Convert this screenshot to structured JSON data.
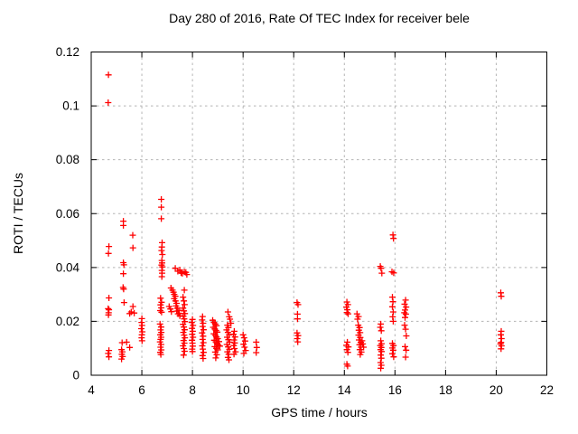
{
  "chart_data": {
    "type": "scatter",
    "title": "Day 280 of 2016, Rate Of TEC Index for receiver bele",
    "xlabel": "GPS time / hours",
    "ylabel": "ROTI / TECUs",
    "xlim": [
      4,
      22
    ],
    "ylim": [
      0,
      0.12
    ],
    "x_ticks": [
      4,
      6,
      8,
      10,
      12,
      14,
      16,
      18,
      20,
      22
    ],
    "y_ticks": [
      0,
      0.02,
      0.04,
      0.06,
      0.08,
      0.1,
      0.12
    ],
    "y_tick_labels": [
      "0",
      "0.02",
      "0.04",
      "0.06",
      "0.08",
      "0.1",
      "0.12"
    ],
    "grid": true,
    "legend": false,
    "marker": "plus",
    "marker_color": "#ff0000",
    "grid_color": "#b4b4b4",
    "axis_color": "#000000",
    "series": [
      {
        "name": "ROTI",
        "points": [
          [
            4.68,
            0.1115
          ],
          [
            4.67,
            0.1012
          ],
          [
            4.7,
            0.0478
          ],
          [
            4.68,
            0.0452
          ],
          [
            4.7,
            0.0287
          ],
          [
            4.67,
            0.0247
          ],
          [
            4.7,
            0.0243
          ],
          [
            4.69,
            0.0232
          ],
          [
            4.68,
            0.0224
          ],
          [
            4.7,
            0.0092
          ],
          [
            4.67,
            0.0081
          ],
          [
            4.7,
            0.0068
          ],
          [
            5.27,
            0.0572
          ],
          [
            5.27,
            0.0556
          ],
          [
            5.27,
            0.0418
          ],
          [
            5.29,
            0.041
          ],
          [
            5.27,
            0.0377
          ],
          [
            5.26,
            0.0326
          ],
          [
            5.28,
            0.032
          ],
          [
            5.3,
            0.027
          ],
          [
            5.22,
            0.0121
          ],
          [
            5.2,
            0.0095
          ],
          [
            5.23,
            0.0087
          ],
          [
            5.21,
            0.0078
          ],
          [
            5.24,
            0.0069
          ],
          [
            5.2,
            0.006
          ],
          [
            5.4,
            0.0123
          ],
          [
            5.52,
            0.0229
          ],
          [
            5.58,
            0.0235
          ],
          [
            5.52,
            0.0103
          ],
          [
            5.64,
            0.052
          ],
          [
            5.65,
            0.0473
          ],
          [
            5.65,
            0.0255
          ],
          [
            5.7,
            0.0231
          ],
          [
            6.0,
            0.021
          ],
          [
            5.99,
            0.0196
          ],
          [
            6.01,
            0.0185
          ],
          [
            5.98,
            0.0173
          ],
          [
            6.02,
            0.0161
          ],
          [
            6.0,
            0.015
          ],
          [
            5.99,
            0.0139
          ],
          [
            6.01,
            0.0128
          ],
          [
            6.77,
            0.0653
          ],
          [
            6.77,
            0.0624
          ],
          [
            6.77,
            0.0581
          ],
          [
            6.8,
            0.0492
          ],
          [
            6.79,
            0.0476
          ],
          [
            6.78,
            0.0463
          ],
          [
            6.81,
            0.0448
          ],
          [
            6.79,
            0.0426
          ],
          [
            6.8,
            0.0417
          ],
          [
            6.78,
            0.0409
          ],
          [
            6.81,
            0.0402
          ],
          [
            6.79,
            0.0389
          ],
          [
            6.8,
            0.0379
          ],
          [
            6.79,
            0.0366
          ],
          [
            6.74,
            0.0286
          ],
          [
            6.78,
            0.0271
          ],
          [
            6.74,
            0.0261
          ],
          [
            6.77,
            0.025
          ],
          [
            6.73,
            0.024
          ],
          [
            6.78,
            0.0234
          ],
          [
            6.72,
            0.019
          ],
          [
            6.76,
            0.0179
          ],
          [
            6.74,
            0.0168
          ],
          [
            6.77,
            0.0159
          ],
          [
            6.73,
            0.015
          ],
          [
            6.76,
            0.0141
          ],
          [
            6.74,
            0.0133
          ],
          [
            6.72,
            0.0124
          ],
          [
            6.76,
            0.0114
          ],
          [
            6.74,
            0.0104
          ],
          [
            6.77,
            0.0094
          ],
          [
            6.73,
            0.0085
          ],
          [
            6.75,
            0.0077
          ],
          [
            7.08,
            0.0255
          ],
          [
            7.13,
            0.0246
          ],
          [
            7.17,
            0.0236
          ],
          [
            7.15,
            0.0324
          ],
          [
            7.21,
            0.0316
          ],
          [
            7.25,
            0.0308
          ],
          [
            7.28,
            0.03
          ],
          [
            7.32,
            0.0293
          ],
          [
            7.28,
            0.0284
          ],
          [
            7.33,
            0.0276
          ],
          [
            7.37,
            0.0267
          ],
          [
            7.35,
            0.0257
          ],
          [
            7.4,
            0.0249
          ],
          [
            7.38,
            0.0238
          ],
          [
            7.43,
            0.0228
          ],
          [
            7.46,
            0.0241
          ],
          [
            7.48,
            0.023
          ],
          [
            7.5,
            0.0221
          ],
          [
            7.32,
            0.0397
          ],
          [
            7.42,
            0.0386
          ],
          [
            7.5,
            0.0391
          ],
          [
            7.55,
            0.038
          ],
          [
            7.6,
            0.0378
          ],
          [
            7.68,
            0.0384
          ],
          [
            7.74,
            0.0382
          ],
          [
            7.78,
            0.0374
          ],
          [
            7.68,
            0.0316
          ],
          [
            7.63,
            0.029
          ],
          [
            7.66,
            0.0276
          ],
          [
            7.69,
            0.0262
          ],
          [
            7.63,
            0.0249
          ],
          [
            7.66,
            0.0239
          ],
          [
            7.7,
            0.0229
          ],
          [
            7.64,
            0.0219
          ],
          [
            7.67,
            0.0209
          ],
          [
            7.7,
            0.0199
          ],
          [
            7.63,
            0.0189
          ],
          [
            7.66,
            0.0179
          ],
          [
            7.69,
            0.0169
          ],
          [
            7.64,
            0.0159
          ],
          [
            7.67,
            0.0149
          ],
          [
            7.7,
            0.0139
          ],
          [
            7.65,
            0.0129
          ],
          [
            7.68,
            0.0119
          ],
          [
            7.63,
            0.0109
          ],
          [
            7.66,
            0.0099
          ],
          [
            7.69,
            0.0089
          ],
          [
            7.65,
            0.0075
          ],
          [
            8.0,
            0.0207
          ],
          [
            7.97,
            0.0196
          ],
          [
            8.02,
            0.0185
          ],
          [
            7.98,
            0.0174
          ],
          [
            8.01,
            0.0163
          ],
          [
            7.99,
            0.0152
          ],
          [
            8.02,
            0.0141
          ],
          [
            7.98,
            0.013
          ],
          [
            8.0,
            0.0119
          ],
          [
            8.01,
            0.0108
          ],
          [
            7.99,
            0.0097
          ],
          [
            8.0,
            0.0088
          ],
          [
            8.4,
            0.0218
          ],
          [
            8.38,
            0.0205
          ],
          [
            8.42,
            0.0193
          ],
          [
            8.4,
            0.0181
          ],
          [
            8.44,
            0.0169
          ],
          [
            8.38,
            0.0157
          ],
          [
            8.42,
            0.0145
          ],
          [
            8.4,
            0.0133
          ],
          [
            8.43,
            0.0121
          ],
          [
            8.39,
            0.0109
          ],
          [
            8.41,
            0.0097
          ],
          [
            8.44,
            0.0085
          ],
          [
            8.4,
            0.0073
          ],
          [
            8.42,
            0.0062
          ],
          [
            8.8,
            0.0204
          ],
          [
            8.85,
            0.0196
          ],
          [
            8.9,
            0.019
          ],
          [
            8.95,
            0.0184
          ],
          [
            8.82,
            0.0178
          ],
          [
            8.88,
            0.0172
          ],
          [
            8.93,
            0.0166
          ],
          [
            8.98,
            0.016
          ],
          [
            8.84,
            0.0154
          ],
          [
            8.9,
            0.0148
          ],
          [
            8.95,
            0.0142
          ],
          [
            9.0,
            0.0136
          ],
          [
            8.86,
            0.013
          ],
          [
            8.92,
            0.0124
          ],
          [
            8.97,
            0.0118
          ],
          [
            9.02,
            0.0112
          ],
          [
            8.88,
            0.0106
          ],
          [
            8.94,
            0.01
          ],
          [
            9.0,
            0.0094
          ],
          [
            8.9,
            0.0086
          ],
          [
            8.96,
            0.0076
          ],
          [
            8.92,
            0.0064
          ],
          [
            9.05,
            0.0125
          ],
          [
            9.08,
            0.0108
          ],
          [
            9.4,
            0.0235
          ],
          [
            9.45,
            0.0217
          ],
          [
            9.48,
            0.0208
          ],
          [
            9.52,
            0.0193
          ],
          [
            9.38,
            0.0186
          ],
          [
            9.42,
            0.0177
          ],
          [
            9.35,
            0.0168
          ],
          [
            9.4,
            0.0159
          ],
          [
            9.45,
            0.015
          ],
          [
            9.37,
            0.0141
          ],
          [
            9.42,
            0.0132
          ],
          [
            9.47,
            0.0123
          ],
          [
            9.36,
            0.0114
          ],
          [
            9.41,
            0.0105
          ],
          [
            9.46,
            0.0096
          ],
          [
            9.38,
            0.0087
          ],
          [
            9.43,
            0.0078
          ],
          [
            9.4,
            0.0066
          ],
          [
            9.44,
            0.0057
          ],
          [
            9.65,
            0.0163
          ],
          [
            9.62,
            0.0152
          ],
          [
            9.68,
            0.0142
          ],
          [
            9.64,
            0.0131
          ],
          [
            9.67,
            0.012
          ],
          [
            9.63,
            0.011
          ],
          [
            9.66,
            0.0099
          ],
          [
            9.7,
            0.0087
          ],
          [
            9.64,
            0.0078
          ],
          [
            10.0,
            0.015
          ],
          [
            10.04,
            0.0139
          ],
          [
            10.08,
            0.0127
          ],
          [
            10.02,
            0.0115
          ],
          [
            10.06,
            0.0104
          ],
          [
            10.1,
            0.0092
          ],
          [
            10.03,
            0.0081
          ],
          [
            10.52,
            0.0123
          ],
          [
            10.54,
            0.0103
          ],
          [
            10.52,
            0.0084
          ],
          [
            12.13,
            0.027
          ],
          [
            12.17,
            0.0262
          ],
          [
            12.15,
            0.0227
          ],
          [
            12.15,
            0.0209
          ],
          [
            12.13,
            0.0157
          ],
          [
            12.17,
            0.0147
          ],
          [
            12.14,
            0.0136
          ],
          [
            12.16,
            0.0124
          ],
          [
            14.1,
            0.0272
          ],
          [
            14.14,
            0.0262
          ],
          [
            14.08,
            0.0253
          ],
          [
            14.12,
            0.0243
          ],
          [
            14.1,
            0.0233
          ],
          [
            14.15,
            0.0228
          ],
          [
            14.12,
            0.0123
          ],
          [
            14.08,
            0.0111
          ],
          [
            14.16,
            0.0105
          ],
          [
            14.1,
            0.0095
          ],
          [
            14.14,
            0.0085
          ],
          [
            14.1,
            0.0041
          ],
          [
            14.13,
            0.0034
          ],
          [
            14.5,
            0.0228
          ],
          [
            14.56,
            0.0218
          ],
          [
            14.52,
            0.0208
          ],
          [
            14.55,
            0.0186
          ],
          [
            14.6,
            0.0177
          ],
          [
            14.57,
            0.0167
          ],
          [
            14.62,
            0.0158
          ],
          [
            14.56,
            0.0149
          ],
          [
            14.63,
            0.014
          ],
          [
            14.58,
            0.0131
          ],
          [
            14.65,
            0.0122
          ],
          [
            14.6,
            0.0113
          ],
          [
            14.66,
            0.0104
          ],
          [
            14.61,
            0.0095
          ],
          [
            14.67,
            0.0086
          ],
          [
            14.63,
            0.0077
          ],
          [
            14.7,
            0.0128
          ],
          [
            14.73,
            0.0116
          ],
          [
            14.76,
            0.0104
          ],
          [
            15.42,
            0.0404
          ],
          [
            15.45,
            0.0397
          ],
          [
            15.48,
            0.0379
          ],
          [
            15.44,
            0.019
          ],
          [
            15.42,
            0.0178
          ],
          [
            15.46,
            0.0165
          ],
          [
            15.44,
            0.0128
          ],
          [
            15.47,
            0.0117
          ],
          [
            15.42,
            0.011
          ],
          [
            15.46,
            0.0103
          ],
          [
            15.43,
            0.0095
          ],
          [
            15.47,
            0.0088
          ],
          [
            15.44,
            0.0075
          ],
          [
            15.46,
            0.0063
          ],
          [
            15.43,
            0.0047
          ],
          [
            15.46,
            0.0037
          ],
          [
            15.44,
            0.0026
          ],
          [
            15.92,
            0.0521
          ],
          [
            15.94,
            0.0508
          ],
          [
            15.88,
            0.0384
          ],
          [
            15.95,
            0.038
          ],
          [
            15.9,
            0.029
          ],
          [
            15.92,
            0.0273
          ],
          [
            15.9,
            0.0254
          ],
          [
            15.93,
            0.0235
          ],
          [
            15.91,
            0.0217
          ],
          [
            15.93,
            0.02
          ],
          [
            15.9,
            0.0118
          ],
          [
            15.94,
            0.011
          ],
          [
            15.9,
            0.0101
          ],
          [
            15.93,
            0.0093
          ],
          [
            15.9,
            0.008
          ],
          [
            15.95,
            0.0068
          ],
          [
            16.42,
            0.0279
          ],
          [
            16.38,
            0.0264
          ],
          [
            16.44,
            0.0253
          ],
          [
            16.4,
            0.0242
          ],
          [
            16.37,
            0.0232
          ],
          [
            16.43,
            0.0227
          ],
          [
            16.4,
            0.0214
          ],
          [
            16.38,
            0.0186
          ],
          [
            16.42,
            0.0171
          ],
          [
            16.45,
            0.0146
          ],
          [
            16.4,
            0.0106
          ],
          [
            16.44,
            0.0093
          ],
          [
            16.42,
            0.0067
          ],
          [
            20.18,
            0.0306
          ],
          [
            20.2,
            0.0293
          ],
          [
            20.2,
            0.0163
          ],
          [
            20.18,
            0.015
          ],
          [
            20.21,
            0.0136
          ],
          [
            20.19,
            0.0122
          ],
          [
            20.17,
            0.0116
          ],
          [
            20.21,
            0.0109
          ],
          [
            20.19,
            0.0098
          ]
        ]
      }
    ]
  }
}
